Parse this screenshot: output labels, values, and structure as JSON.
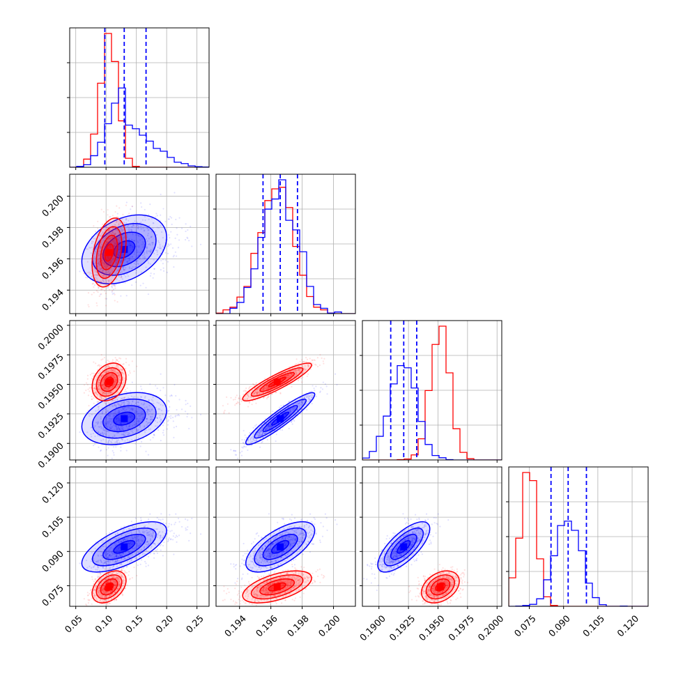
{
  "chart_data": {
    "type": "corner",
    "description_note": "",
    "grid": true,
    "colors": {
      "series_a": "#0000ff",
      "series_b": "#ff0000",
      "quantile": "#0000ff"
    },
    "series": [
      {
        "color": "#0000ff",
        "means": [
          0.13,
          0.1966,
          0.1921,
          0.092
        ],
        "std": [
          0.035,
          0.0011,
          0.0011,
          0.0055
        ],
        "correlations": {
          "1-0": 0.35,
          "2-0": 0.3,
          "2-1": 0.93,
          "3-0": 0.65,
          "3-1": 0.65,
          "3-2": 0.72
        }
      },
      {
        "color": "#ff0000",
        "means": [
          0.105,
          0.1964,
          0.1952,
          0.0745
        ],
        "std": [
          0.014,
          0.0011,
          0.0008,
          0.0035
        ],
        "correlations": {
          "1-0": 0.35,
          "2-0": 0.25,
          "2-1": 0.9,
          "3-0": 0.4,
          "3-1": 0.55,
          "3-2": 0.35
        }
      }
    ],
    "quantiles": [
      [
        0.098,
        0.13,
        0.166
      ],
      [
        0.1955,
        0.1966,
        0.1977
      ],
      [
        0.191,
        0.1921,
        0.1932
      ],
      [
        0.0845,
        0.092,
        0.1
      ]
    ],
    "variables": [
      {
        "range": [
          0.04,
          0.27
        ],
        "ticks": [
          0.05,
          0.1,
          0.15,
          0.2,
          0.25
        ],
        "tick_labels": [
          "0.05",
          "0.10",
          "0.15",
          "0.20",
          "0.25"
        ]
      },
      {
        "range": [
          0.1925,
          0.2014
        ],
        "ticks": [
          0.194,
          0.196,
          0.198,
          0.2
        ],
        "tick_labels": [
          "0.194",
          "0.196",
          "0.198",
          "0.200"
        ]
      },
      {
        "range": [
          0.1886,
          0.2004
        ],
        "ticks": [
          0.19,
          0.1925,
          0.195,
          0.1975,
          0.2
        ],
        "tick_labels": [
          "0.1900",
          "0.1925",
          "0.1950",
          "0.1975",
          "0.2000"
        ]
      },
      {
        "range": [
          0.066,
          0.127
        ],
        "ticks": [
          0.075,
          0.09,
          0.105,
          0.12
        ],
        "tick_labels": [
          "0.075",
          "0.090",
          "0.105",
          "0.120"
        ]
      }
    ]
  }
}
